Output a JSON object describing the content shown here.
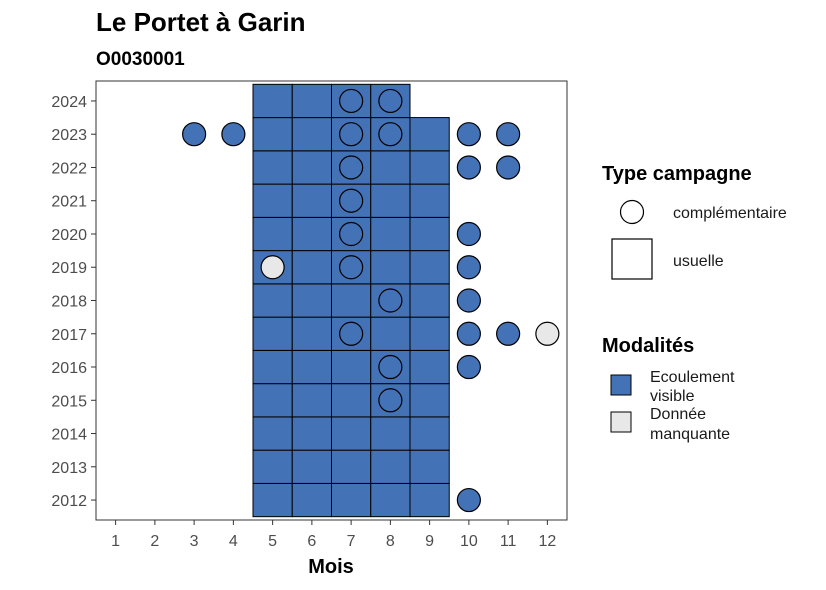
{
  "chart_data": {
    "type": "heatmap",
    "title": "Le Portet à Garin",
    "subtitle": "O0030001",
    "xlabel": "Mois",
    "ylabel": "",
    "x_ticks": [
      1,
      2,
      3,
      4,
      5,
      6,
      7,
      8,
      9,
      10,
      11,
      12
    ],
    "y_ticks": [
      2012,
      2013,
      2014,
      2015,
      2016,
      2017,
      2018,
      2019,
      2020,
      2021,
      2022,
      2023,
      2024
    ],
    "xlim": [
      0.5,
      12.5
    ],
    "ylim": [
      2011.4,
      2024.6
    ],
    "colors": {
      "ecoulement": "#4472b6",
      "manquante": "#e8e8e8"
    },
    "tiles": [
      {
        "month": 5,
        "year": 2012,
        "modalite": "ecoulement"
      },
      {
        "month": 6,
        "year": 2012,
        "modalite": "ecoulement"
      },
      {
        "month": 7,
        "year": 2012,
        "modalite": "ecoulement"
      },
      {
        "month": 8,
        "year": 2012,
        "modalite": "ecoulement"
      },
      {
        "month": 9,
        "year": 2012,
        "modalite": "ecoulement"
      },
      {
        "month": 5,
        "year": 2013,
        "modalite": "ecoulement"
      },
      {
        "month": 6,
        "year": 2013,
        "modalite": "ecoulement"
      },
      {
        "month": 7,
        "year": 2013,
        "modalite": "ecoulement"
      },
      {
        "month": 8,
        "year": 2013,
        "modalite": "ecoulement"
      },
      {
        "month": 9,
        "year": 2013,
        "modalite": "ecoulement"
      },
      {
        "month": 5,
        "year": 2014,
        "modalite": "ecoulement"
      },
      {
        "month": 6,
        "year": 2014,
        "modalite": "ecoulement"
      },
      {
        "month": 7,
        "year": 2014,
        "modalite": "ecoulement"
      },
      {
        "month": 8,
        "year": 2014,
        "modalite": "ecoulement"
      },
      {
        "month": 9,
        "year": 2014,
        "modalite": "ecoulement"
      },
      {
        "month": 5,
        "year": 2015,
        "modalite": "ecoulement"
      },
      {
        "month": 6,
        "year": 2015,
        "modalite": "ecoulement"
      },
      {
        "month": 7,
        "year": 2015,
        "modalite": "ecoulement"
      },
      {
        "month": 8,
        "year": 2015,
        "modalite": "ecoulement"
      },
      {
        "month": 9,
        "year": 2015,
        "modalite": "ecoulement"
      },
      {
        "month": 5,
        "year": 2016,
        "modalite": "ecoulement"
      },
      {
        "month": 6,
        "year": 2016,
        "modalite": "ecoulement"
      },
      {
        "month": 7,
        "year": 2016,
        "modalite": "ecoulement"
      },
      {
        "month": 8,
        "year": 2016,
        "modalite": "ecoulement"
      },
      {
        "month": 9,
        "year": 2016,
        "modalite": "ecoulement"
      },
      {
        "month": 5,
        "year": 2017,
        "modalite": "ecoulement"
      },
      {
        "month": 6,
        "year": 2017,
        "modalite": "ecoulement"
      },
      {
        "month": 7,
        "year": 2017,
        "modalite": "ecoulement"
      },
      {
        "month": 8,
        "year": 2017,
        "modalite": "ecoulement"
      },
      {
        "month": 9,
        "year": 2017,
        "modalite": "ecoulement"
      },
      {
        "month": 5,
        "year": 2018,
        "modalite": "ecoulement"
      },
      {
        "month": 6,
        "year": 2018,
        "modalite": "ecoulement"
      },
      {
        "month": 7,
        "year": 2018,
        "modalite": "ecoulement"
      },
      {
        "month": 8,
        "year": 2018,
        "modalite": "ecoulement"
      },
      {
        "month": 9,
        "year": 2018,
        "modalite": "ecoulement"
      },
      {
        "month": 5,
        "year": 2019,
        "modalite": "ecoulement"
      },
      {
        "month": 6,
        "year": 2019,
        "modalite": "ecoulement"
      },
      {
        "month": 7,
        "year": 2019,
        "modalite": "ecoulement"
      },
      {
        "month": 8,
        "year": 2019,
        "modalite": "ecoulement"
      },
      {
        "month": 9,
        "year": 2019,
        "modalite": "ecoulement"
      },
      {
        "month": 5,
        "year": 2020,
        "modalite": "ecoulement"
      },
      {
        "month": 6,
        "year": 2020,
        "modalite": "ecoulement"
      },
      {
        "month": 7,
        "year": 2020,
        "modalite": "ecoulement"
      },
      {
        "month": 8,
        "year": 2020,
        "modalite": "ecoulement"
      },
      {
        "month": 9,
        "year": 2020,
        "modalite": "ecoulement"
      },
      {
        "month": 5,
        "year": 2021,
        "modalite": "ecoulement"
      },
      {
        "month": 6,
        "year": 2021,
        "modalite": "ecoulement"
      },
      {
        "month": 7,
        "year": 2021,
        "modalite": "ecoulement"
      },
      {
        "month": 8,
        "year": 2021,
        "modalite": "ecoulement"
      },
      {
        "month": 9,
        "year": 2021,
        "modalite": "ecoulement"
      },
      {
        "month": 5,
        "year": 2022,
        "modalite": "ecoulement"
      },
      {
        "month": 6,
        "year": 2022,
        "modalite": "ecoulement"
      },
      {
        "month": 7,
        "year": 2022,
        "modalite": "ecoulement"
      },
      {
        "month": 8,
        "year": 2022,
        "modalite": "ecoulement"
      },
      {
        "month": 9,
        "year": 2022,
        "modalite": "ecoulement"
      },
      {
        "month": 5,
        "year": 2023,
        "modalite": "ecoulement"
      },
      {
        "month": 6,
        "year": 2023,
        "modalite": "ecoulement"
      },
      {
        "month": 7,
        "year": 2023,
        "modalite": "ecoulement"
      },
      {
        "month": 8,
        "year": 2023,
        "modalite": "ecoulement"
      },
      {
        "month": 9,
        "year": 2023,
        "modalite": "ecoulement"
      },
      {
        "month": 5,
        "year": 2024,
        "modalite": "ecoulement"
      },
      {
        "month": 6,
        "year": 2024,
        "modalite": "ecoulement"
      },
      {
        "month": 7,
        "year": 2024,
        "modalite": "ecoulement"
      },
      {
        "month": 8,
        "year": 2024,
        "modalite": "ecoulement"
      }
    ],
    "points": [
      {
        "month": 7,
        "year": 2024,
        "modalite": "ecoulement"
      },
      {
        "month": 8,
        "year": 2024,
        "modalite": "ecoulement"
      },
      {
        "month": 3,
        "year": 2023,
        "modalite": "ecoulement"
      },
      {
        "month": 4,
        "year": 2023,
        "modalite": "ecoulement"
      },
      {
        "month": 7,
        "year": 2023,
        "modalite": "ecoulement"
      },
      {
        "month": 8,
        "year": 2023,
        "modalite": "ecoulement"
      },
      {
        "month": 10,
        "year": 2023,
        "modalite": "ecoulement"
      },
      {
        "month": 11,
        "year": 2023,
        "modalite": "ecoulement"
      },
      {
        "month": 7,
        "year": 2022,
        "modalite": "ecoulement"
      },
      {
        "month": 10,
        "year": 2022,
        "modalite": "ecoulement"
      },
      {
        "month": 11,
        "year": 2022,
        "modalite": "ecoulement"
      },
      {
        "month": 7,
        "year": 2021,
        "modalite": "ecoulement"
      },
      {
        "month": 7,
        "year": 2020,
        "modalite": "ecoulement"
      },
      {
        "month": 10,
        "year": 2020,
        "modalite": "ecoulement"
      },
      {
        "month": 5,
        "year": 2019,
        "modalite": "manquante"
      },
      {
        "month": 7,
        "year": 2019,
        "modalite": "ecoulement"
      },
      {
        "month": 10,
        "year": 2019,
        "modalite": "ecoulement"
      },
      {
        "month": 8,
        "year": 2018,
        "modalite": "ecoulement"
      },
      {
        "month": 10,
        "year": 2018,
        "modalite": "ecoulement"
      },
      {
        "month": 7,
        "year": 2017,
        "modalite": "ecoulement"
      },
      {
        "month": 10,
        "year": 2017,
        "modalite": "ecoulement"
      },
      {
        "month": 11,
        "year": 2017,
        "modalite": "ecoulement"
      },
      {
        "month": 12,
        "year": 2017,
        "modalite": "manquante"
      },
      {
        "month": 8,
        "year": 2016,
        "modalite": "ecoulement"
      },
      {
        "month": 10,
        "year": 2016,
        "modalite": "ecoulement"
      },
      {
        "month": 8,
        "year": 2015,
        "modalite": "ecoulement"
      },
      {
        "month": 10,
        "year": 2012,
        "modalite": "ecoulement"
      }
    ],
    "legend": {
      "placement": "right",
      "type_title": "Type campagne",
      "type_items": [
        {
          "shape": "circle",
          "label": "complémentaire"
        },
        {
          "shape": "square",
          "label": "usuelle"
        }
      ],
      "modal_title": "Modalités",
      "modal_items": [
        {
          "key": "ecoulement",
          "lines": [
            "Ecoulement",
            "visible"
          ]
        },
        {
          "key": "manquante",
          "lines": [
            "Donnée",
            "manquante"
          ]
        }
      ]
    }
  }
}
